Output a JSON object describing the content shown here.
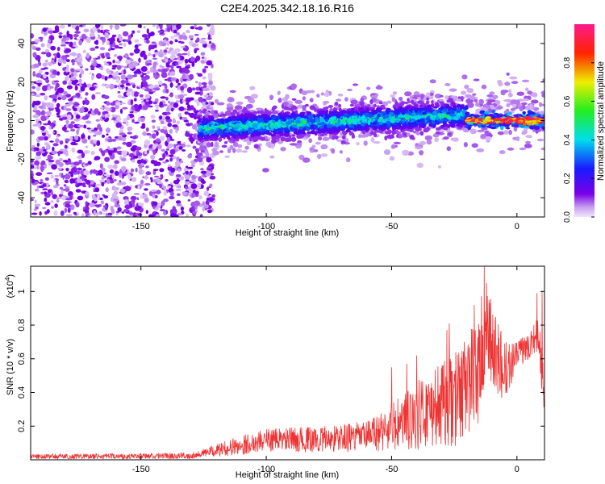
{
  "figure": {
    "title": "C2E4.2025.342.18.16.R16"
  },
  "chart_data": [
    {
      "id": "spectrogram",
      "type": "heatmap",
      "title": "C2E4.2025.342.18.16.R16",
      "xlabel": "Height of straight line (km)",
      "ylabel": "Frequency (Hz)",
      "xlim": [
        -194,
        11
      ],
      "ylim": [
        -50,
        50
      ],
      "xticks": [
        -150,
        -100,
        -50,
        0
      ],
      "yticks": [
        -40,
        -20,
        0,
        20,
        40
      ],
      "colorbar": {
        "label": "Normalized spectral amplitude",
        "range": [
          0,
          1
        ],
        "ticks": [
          0.0,
          0.2,
          0.4,
          0.6,
          0.8
        ],
        "colormap": "rainbow (violet → blue → cyan → green → yellow → red → magenta)"
      },
      "regions": [
        {
          "name": "noise",
          "x_range": [
            -194,
            -127
          ],
          "freq_range": [
            -50,
            50
          ],
          "amplitude_range": [
            0.0,
            0.15
          ]
        },
        {
          "name": "signal_band",
          "x_range": [
            -127,
            -20
          ],
          "freq_center_start": -4,
          "freq_center_end": 3,
          "half_width_hz": 6,
          "amplitude_range": [
            0.1,
            0.5
          ]
        },
        {
          "name": "strong_signal",
          "x_range": [
            -20,
            11
          ],
          "freq_center": 0,
          "half_width_hz": 2,
          "amplitude_range": [
            0.6,
            1.0
          ]
        }
      ]
    },
    {
      "id": "snr",
      "type": "line",
      "title": "",
      "xlabel": "Height of straight line (km)",
      "ylabel": "SNR (10 * v/v)",
      "y_multiplier_label": "(x10",
      "y_multiplier_exp": "4",
      "y_multiplier_close": ")",
      "xlim": [
        -194,
        11
      ],
      "ylim": [
        0,
        1.15
      ],
      "xticks": [
        -150,
        -100,
        -50,
        0
      ],
      "yticks": [
        0.2,
        0.4,
        0.6,
        0.8,
        1.0
      ],
      "series": [
        {
          "name": "SNR",
          "color": "#ee3333",
          "envelope_x": [
            -194,
            -150,
            -130,
            -127,
            -115,
            -100,
            -80,
            -60,
            -45,
            -35,
            -25,
            -20,
            -15,
            -13,
            -8,
            -5,
            0,
            4,
            8,
            9,
            10,
            11
          ],
          "envelope_y": [
            0.02,
            0.02,
            0.025,
            0.035,
            0.07,
            0.12,
            0.12,
            0.14,
            0.22,
            0.3,
            0.35,
            0.45,
            0.55,
            0.75,
            0.6,
            0.52,
            0.62,
            0.68,
            0.74,
            0.72,
            0.5,
            0.4
          ],
          "noise_amplitude_x": [
            -194,
            -127,
            -110,
            -60,
            -45,
            -20,
            -13,
            0,
            11
          ],
          "noise_amplitude_y": [
            0.015,
            0.02,
            0.06,
            0.09,
            0.18,
            0.3,
            0.35,
            0.08,
            0.12
          ],
          "peaks": [
            {
              "x": -13,
              "y": 1.15
            },
            {
              "x": -17,
              "y": 0.92
            },
            {
              "x": -27,
              "y": 0.81
            },
            {
              "x": -28,
              "y": 0.77
            },
            {
              "x": -40,
              "y": 0.62
            },
            {
              "x": -44,
              "y": 0.57
            },
            {
              "x": -50,
              "y": 0.55
            },
            {
              "x": 8,
              "y": 0.99
            },
            {
              "x": 10,
              "y": 1.0
            }
          ]
        }
      ]
    }
  ]
}
